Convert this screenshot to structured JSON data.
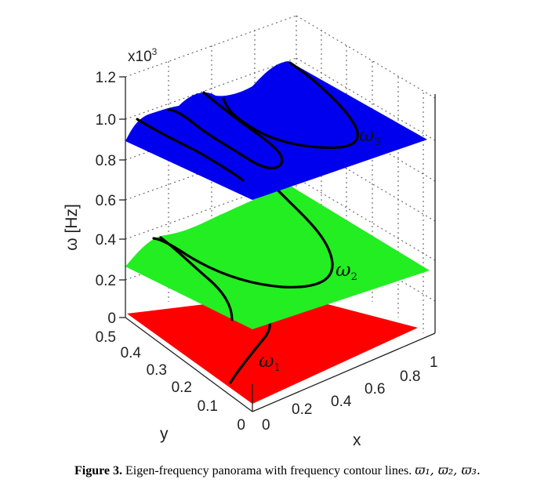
{
  "figure": {
    "exponent_label": "x10",
    "exponent_power": "3",
    "z_axis_label": "ω [Hz]",
    "y_axis_label": "y",
    "x_axis_label": "x",
    "z_ticks": [
      "0",
      "0.2",
      "0.4",
      "0.6",
      "0.8",
      "1.0",
      "1.2"
    ],
    "y_ticks": [
      "0",
      "0.1",
      "0.2",
      "0.3",
      "0.4",
      "0.5"
    ],
    "x_ticks": [
      "0",
      "0.2",
      "0.4",
      "0.6",
      "0.8",
      "1"
    ],
    "surfaces": [
      {
        "name": "ω1",
        "symbol": "ω",
        "sub": "1",
        "color": "#ff0000"
      },
      {
        "name": "ω2",
        "symbol": "ω",
        "sub": "2",
        "color": "#00ee00"
      },
      {
        "name": "ω3",
        "symbol": "ω",
        "sub": "3",
        "color": "#0000ff"
      }
    ]
  },
  "caption": {
    "label": "Figure 3.",
    "text": " Eigen-frequency panorama with frequency contour lines. ",
    "symbols": "ϖ₁, ϖ₂, ϖ₃."
  }
}
